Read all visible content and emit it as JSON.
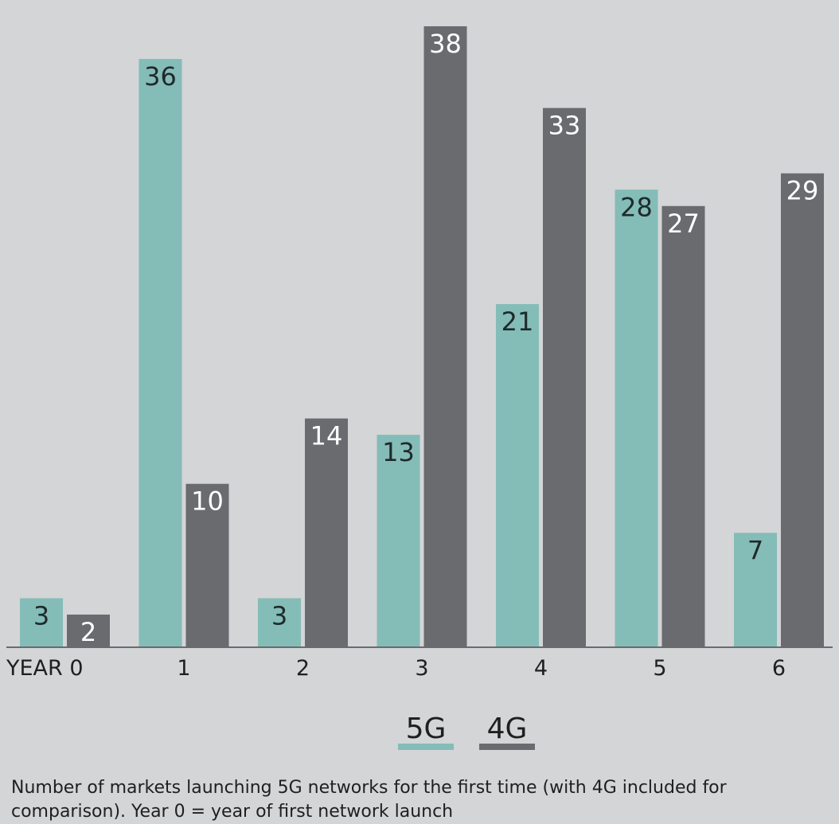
{
  "chart_data": {
    "type": "bar",
    "categories": [
      "YEAR 0",
      "1",
      "2",
      "3",
      "4",
      "5",
      "6"
    ],
    "series": [
      {
        "name": "5G",
        "values": [
          3,
          36,
          3,
          13,
          21,
          28,
          7
        ],
        "color": "#84bcb8"
      },
      {
        "name": "4G",
        "values": [
          2,
          10,
          14,
          38,
          33,
          27,
          29
        ],
        "color": "#6a6b6f"
      }
    ],
    "ylim": [
      0,
      38
    ],
    "grid": false,
    "legend_position": "bottom-center",
    "data_label_color_5g": "#1f2a2a",
    "data_label_color_4g": "#ffffff"
  },
  "caption": "Number of markets launching 5G networks for the first time (with 4G included for comparison). Year 0 = year of first network launch"
}
